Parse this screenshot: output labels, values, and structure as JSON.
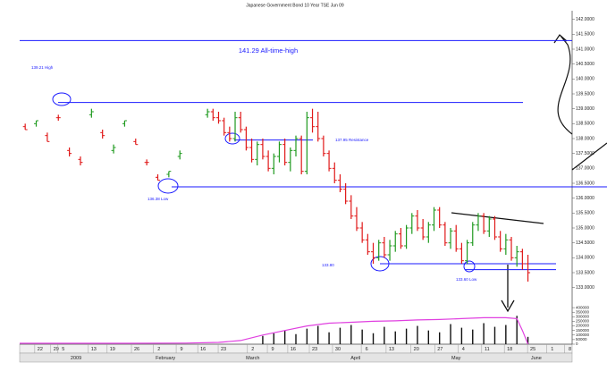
{
  "chart_data": {
    "type": "ohlc",
    "title": "Japanese Government Bond 10 Year TSE Jun 09",
    "up_color": "#1f9a1f",
    "down_color": "#e01818",
    "xlim": [
      0,
      100
    ],
    "ylim": [
      132.6,
      142.2
    ],
    "yticks": [
      {
        "value": 133.0,
        "label": "133.0000"
      },
      {
        "value": 133.5,
        "label": "133.5000"
      },
      {
        "value": 134.0,
        "label": "134.0000"
      },
      {
        "value": 134.5,
        "label": "134.5000"
      },
      {
        "value": 135.0,
        "label": "135.0000"
      },
      {
        "value": 135.5,
        "label": "135.5000"
      },
      {
        "value": 136.0,
        "label": "136.0000"
      },
      {
        "value": 136.5,
        "label": "136.5000"
      },
      {
        "value": 137.0,
        "label": "137.0000"
      },
      {
        "value": 137.5,
        "label": "137.5000"
      },
      {
        "value": 138.0,
        "label": "138.0000"
      },
      {
        "value": 138.5,
        "label": "138.5000"
      },
      {
        "value": 139.0,
        "label": "139.0000"
      },
      {
        "value": 139.5,
        "label": "139.5000"
      },
      {
        "value": 140.0,
        "label": "140.0000"
      },
      {
        "value": 140.5,
        "label": "140.5000"
      },
      {
        "value": 141.0,
        "label": "141.0000"
      },
      {
        "value": 141.5,
        "label": "141.5000"
      },
      {
        "value": 142.0,
        "label": "142.0000"
      }
    ],
    "xticks": [
      {
        "value": 3.7,
        "label": "22"
      },
      {
        "value": 6.6,
        "label": "29"
      },
      {
        "value": 7.9,
        "label": "5"
      },
      {
        "value": 13.4,
        "label": "13"
      },
      {
        "value": 16.8,
        "label": "19"
      },
      {
        "value": 21.2,
        "label": "26"
      },
      {
        "value": 25.2,
        "label": "2"
      },
      {
        "value": 29.3,
        "label": "9"
      },
      {
        "value": 33.2,
        "label": "16"
      },
      {
        "value": 36.9,
        "label": "23"
      },
      {
        "value": 42.2,
        "label": "2"
      },
      {
        "value": 45.8,
        "label": "9"
      },
      {
        "value": 49.5,
        "label": "16"
      },
      {
        "value": 53.4,
        "label": "23"
      },
      {
        "value": 57.6,
        "label": "30"
      },
      {
        "value": 62.8,
        "label": "6"
      },
      {
        "value": 67.3,
        "label": "13"
      },
      {
        "value": 71.8,
        "label": "20"
      },
      {
        "value": 76.1,
        "label": "27"
      },
      {
        "value": 80.3,
        "label": "4"
      },
      {
        "value": 84.6,
        "label": "11"
      },
      {
        "value": 88.7,
        "label": "18"
      },
      {
        "value": 92.9,
        "label": "25"
      },
      {
        "value": 96.4,
        "label": "1"
      },
      {
        "value": 99.6,
        "label": "8"
      }
    ],
    "month_ticks": [
      {
        "value": 10.2,
        "label": "2009"
      },
      {
        "value": 26.4,
        "label": "February"
      },
      {
        "value": 42.2,
        "label": "March"
      },
      {
        "value": 60.8,
        "label": "April"
      },
      {
        "value": 79.0,
        "label": "May"
      },
      {
        "value": 93.5,
        "label": "June"
      }
    ],
    "x": [
      1,
      3,
      5,
      7,
      9,
      11,
      13,
      15,
      17,
      19,
      21,
      23,
      25,
      27,
      29,
      34,
      35,
      36,
      37,
      38,
      39,
      40,
      41,
      42,
      43,
      44,
      45,
      46,
      47,
      48,
      49,
      50,
      51,
      52,
      53,
      54,
      55,
      56,
      57,
      58,
      59,
      60,
      61,
      62,
      63,
      64,
      65,
      66,
      67,
      68,
      69,
      70,
      71,
      72,
      73,
      74,
      75,
      76,
      77,
      78,
      79,
      80,
      81,
      82,
      83,
      84,
      85,
      86,
      87,
      88,
      89,
      90,
      91,
      92
    ],
    "open": [
      138.4,
      138.5,
      138.1,
      138.7,
      137.6,
      137.3,
      138.8,
      138.2,
      137.6,
      138.5,
      137.9,
      137.2,
      136.7,
      136.8,
      137.4,
      138.8,
      138.9,
      138.7,
      138.6,
      138.2,
      138.0,
      138.7,
      138.3,
      137.7,
      137.3,
      137.8,
      137.4,
      137.0,
      137.4,
      137.8,
      137.2,
      137.6,
      138.0,
      136.9,
      138.7,
      138.4,
      138.0,
      137.5,
      137.0,
      136.6,
      136.3,
      135.9,
      135.4,
      135.0,
      134.6,
      134.2,
      134.0,
      134.5,
      134.1,
      134.4,
      134.8,
      134.4,
      135.0,
      135.4,
      135.0,
      134.7,
      135.1,
      135.6,
      135.1,
      134.5,
      134.9,
      134.3,
      133.9,
      134.5,
      135.1,
      135.4,
      134.9,
      135.3,
      134.7,
      134.3,
      134.6,
      134.0,
      134.2,
      133.8
    ],
    "high": [
      138.5,
      138.6,
      138.2,
      138.8,
      137.7,
      137.4,
      139.0,
      138.3,
      137.8,
      138.6,
      138.0,
      137.3,
      136.8,
      136.9,
      137.6,
      139.0,
      139.0,
      138.9,
      138.7,
      138.4,
      138.9,
      138.9,
      138.4,
      138.0,
      137.9,
      138.0,
      137.6,
      137.5,
      137.9,
      138.0,
      137.7,
      138.1,
      138.1,
      138.9,
      139.0,
      138.9,
      138.1,
      137.6,
      137.2,
      136.8,
      136.5,
      136.1,
      135.7,
      135.2,
      134.8,
      134.5,
      134.6,
      134.7,
      134.6,
      134.9,
      135.0,
      135.1,
      135.5,
      135.6,
      135.3,
      135.2,
      135.7,
      135.7,
      135.2,
      135.0,
      135.1,
      134.5,
      134.6,
      135.2,
      135.5,
      135.5,
      135.4,
      135.4,
      134.9,
      134.8,
      134.7,
      134.4,
      134.3,
      134.1
    ],
    "low": [
      138.3,
      138.4,
      137.9,
      138.6,
      137.4,
      137.1,
      138.7,
      138.0,
      137.5,
      138.4,
      137.8,
      137.1,
      136.6,
      136.7,
      137.3,
      138.7,
      138.6,
      138.5,
      138.1,
      137.9,
      137.9,
      138.2,
      137.6,
      137.2,
      137.1,
      137.3,
      136.9,
      136.8,
      137.2,
      137.1,
      136.9,
      137.4,
      136.8,
      136.8,
      138.2,
      137.9,
      137.4,
      136.9,
      136.5,
      136.2,
      135.8,
      135.3,
      134.9,
      134.5,
      134.1,
      133.8,
      133.9,
      134.0,
      133.9,
      134.2,
      134.3,
      134.3,
      134.8,
      134.9,
      134.6,
      134.5,
      134.9,
      135.0,
      134.4,
      134.3,
      134.2,
      133.8,
      133.8,
      134.4,
      134.9,
      134.8,
      134.7,
      134.6,
      134.2,
      134.1,
      133.9,
      133.7,
      133.6,
      133.2
    ],
    "close": [
      138.3,
      138.6,
      137.9,
      138.7,
      137.5,
      137.2,
      138.9,
      138.1,
      137.7,
      138.6,
      137.8,
      137.2,
      136.6,
      136.9,
      137.5,
      138.9,
      138.7,
      138.6,
      138.2,
      138.0,
      138.7,
      138.3,
      137.7,
      137.3,
      137.8,
      137.4,
      137.0,
      137.4,
      137.8,
      137.2,
      137.6,
      138.0,
      136.9,
      138.7,
      138.4,
      138.0,
      137.5,
      137.0,
      136.6,
      136.3,
      135.9,
      135.4,
      135.0,
      134.6,
      134.2,
      134.0,
      134.5,
      134.1,
      134.4,
      134.8,
      134.4,
      135.0,
      135.4,
      135.0,
      134.7,
      135.1,
      135.6,
      135.1,
      134.5,
      134.9,
      134.3,
      133.9,
      134.5,
      135.1,
      135.4,
      134.9,
      135.3,
      134.7,
      134.3,
      134.6,
      134.0,
      134.2,
      133.8,
      133.5
    ],
    "levels": [
      {
        "label": "141.29 All-time-high",
        "value": 141.29
      },
      {
        "label": "139.21 High",
        "value": 139.21
      },
      {
        "label": "137.95 Resistance",
        "value": 137.95
      },
      {
        "label": "136.38 Low",
        "value": 136.38
      },
      {
        "label": "133.80",
        "value": 133.8
      },
      {
        "label": "133.60 Low",
        "value": 133.6
      }
    ],
    "level_color": "#1a1aff",
    "volume": {
      "color": "#111111",
      "ylim": [
        0,
        450000
      ],
      "yticks": [
        0,
        50000,
        100000,
        150000,
        200000,
        250000,
        300000,
        350000,
        400000
      ],
      "x": [
        44,
        46,
        48,
        50,
        52,
        54,
        56,
        58,
        60,
        62,
        64,
        66,
        68,
        70,
        72,
        74,
        76,
        78,
        80,
        82,
        84,
        86,
        88,
        90,
        92
      ],
      "values": [
        90000,
        120000,
        150000,
        110000,
        170000,
        200000,
        130000,
        180000,
        210000,
        160000,
        120000,
        190000,
        140000,
        170000,
        200000,
        150000,
        130000,
        220000,
        180000,
        160000,
        230000,
        190000,
        210000,
        310000,
        80000
      ]
    },
    "line": {
      "color": "#e040e0",
      "x": [
        0,
        10,
        20,
        30,
        36,
        40,
        44,
        48,
        52,
        56,
        60,
        64,
        68,
        72,
        76,
        80,
        84,
        88,
        90,
        91,
        92
      ],
      "values": [
        10000,
        10000,
        10000,
        12000,
        20000,
        40000,
        100000,
        150000,
        200000,
        230000,
        240000,
        250000,
        255000,
        265000,
        270000,
        280000,
        290000,
        290000,
        280000,
        150000,
        0
      ]
    }
  }
}
